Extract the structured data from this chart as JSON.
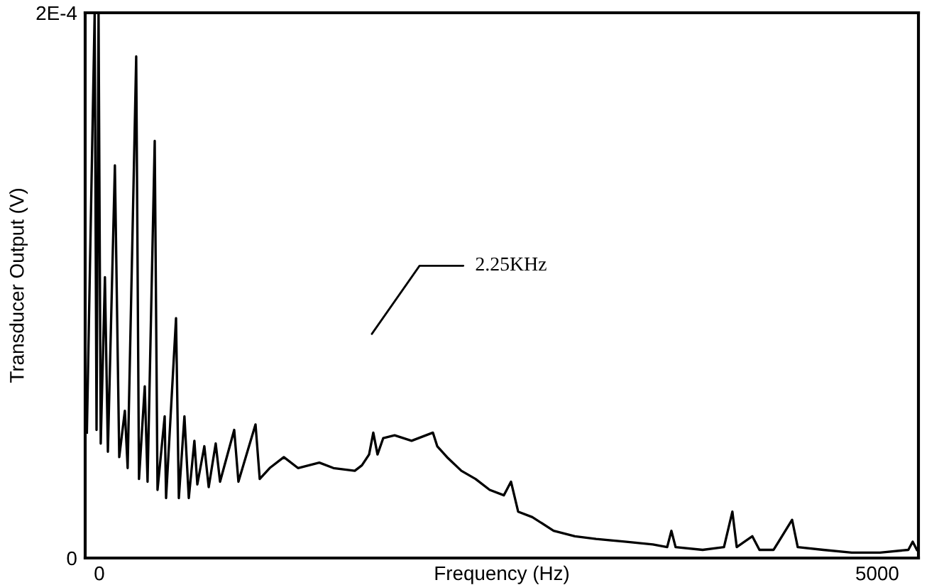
{
  "chart_data": {
    "type": "line",
    "xlabel": "Frequency (Hz)",
    "ylabel": "Transducer Output (V)",
    "xlim": [
      -91,
      5265
    ],
    "xticks": [
      0,
      5000
    ],
    "ylim": [
      0,
      0.0002
    ],
    "yticks": [
      0,
      {
        "value": 0.0002,
        "label": "2E-4"
      }
    ],
    "grid": false,
    "marker": "none",
    "line_style": "solid",
    "annotations": [
      "2.25KHz"
    ],
    "series": [
      {
        "color": "#000000",
        "x": [
          -80,
          -30,
          -18,
          -5,
          9,
          36,
          55,
          100,
          128,
          164,
          182,
          237,
          255,
          292,
          310,
          356,
          374,
          420,
          429,
          493,
          511,
          547,
          575,
          611,
          630,
          675,
          703,
          748,
          776,
          867,
          894,
          1004,
          1031,
          1095,
          1186,
          1277,
          1414,
          1505,
          1642,
          1688,
          1734,
          1761,
          1788,
          1825,
          1898,
          2007,
          2144,
          2172,
          2235,
          2327,
          2418,
          2509,
          2600,
          2646,
          2692,
          2783,
          2920,
          3057,
          3193,
          3376,
          3558,
          3650,
          3677,
          3704,
          3878,
          4015,
          4069,
          4097,
          4197,
          4243,
          4334,
          4453,
          4489,
          4653,
          4836,
          5018,
          5200,
          5228,
          5255
        ],
        "values": [
          4.6e-05,
          0.0002,
          4.7e-05,
          0.0002,
          4.2e-05,
          0.000103,
          3.9e-05,
          0.000144,
          3.7e-05,
          5.4e-05,
          3.3e-05,
          0.000184,
          2.9e-05,
          6.3e-05,
          2.8e-05,
          0.000153,
          2.5e-05,
          5.2e-05,
          2.2e-05,
          8.8e-05,
          2.2e-05,
          5.2e-05,
          2.2e-05,
          4.3e-05,
          2.7e-05,
          4.1e-05,
          2.6e-05,
          4.2e-05,
          2.8e-05,
          4.7e-05,
          2.8e-05,
          4.9e-05,
          2.9e-05,
          3.3e-05,
          3.7e-05,
          3.3e-05,
          3.5e-05,
          3.3e-05,
          3.2e-05,
          3.4e-05,
          3.8e-05,
          4.6e-05,
          3.8e-05,
          4.4e-05,
          4.5e-05,
          4.3e-05,
          4.6e-05,
          4.1e-05,
          3.7e-05,
          3.2e-05,
          2.9e-05,
          2.5e-05,
          2.3e-05,
          2.8e-05,
          1.7e-05,
          1.5e-05,
          1e-05,
          8e-06,
          7e-06,
          6e-06,
          5e-06,
          4e-06,
          1e-05,
          4e-06,
          3e-06,
          4e-06,
          1.7e-05,
          4e-06,
          8e-06,
          3e-06,
          3e-06,
          1.4e-05,
          4e-06,
          3e-06,
          2e-06,
          2e-06,
          3e-06,
          6e-06,
          3e-06
        ]
      }
    ]
  }
}
